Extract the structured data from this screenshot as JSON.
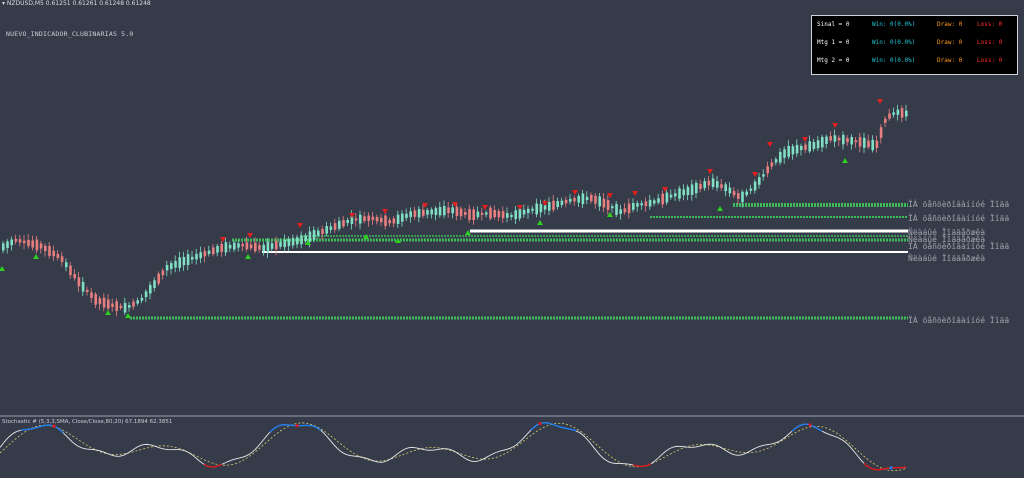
{
  "chart_header": {
    "symbol_line": "▾ NZDUSD,M5  0.61251 0.61261 0.61248 0.61248",
    "indicator_title": "NUEVO_INDICADOR_CLUBINARIAS 5.0"
  },
  "stats_panel": {
    "rows": [
      {
        "label": "Sinal = 0",
        "win": "Win: 0(0.0%)",
        "draw": "Draw: 0",
        "loss": "Loss: 0"
      },
      {
        "label": "Mtg 1 = 0",
        "win": "Win: 0(0.0%)",
        "draw": "Draw: 0",
        "loss": "Loss: 0"
      },
      {
        "label": "Mtg 2 = 0",
        "win": "Win: 0(0.0%)",
        "draw": "Draw: 0",
        "loss": "Loss: 0"
      }
    ]
  },
  "levels": {
    "labels": [
      "ÏÀ öåñöèðîâàííóé Ïîää",
      "ÏÀ öåñöèðîâàííóé Ïîää",
      "Ñëàáûé Ïîääåðæêà",
      "Ñëàáûé Ïîääåðæêà",
      "ÏÀ öåñöèðîâàííóé Ïîää",
      "Ñëàáûé Ïîääåðæêà",
      "ÏÀ öåñöèðîâàííóé Ïîää"
    ]
  },
  "oscillator": {
    "title": "Stochastic # (5,3,3,SMA, Close/Close,80,20) 67.1894 62.3851"
  },
  "colors": {
    "background": "#363b4a",
    "bull_candle": "#7fe0c4",
    "bear_candle": "#e87f7f",
    "support_line": "#3dbb5a",
    "weak_line": "#ffffff",
    "sell_arrow": "#e01f1f",
    "buy_arrow": "#2fd01f",
    "osc_main": "#e8e8e8",
    "osc_signal": "#d8d06a",
    "osc_up": "#1e7ff0",
    "osc_down": "#e0161b"
  }
}
